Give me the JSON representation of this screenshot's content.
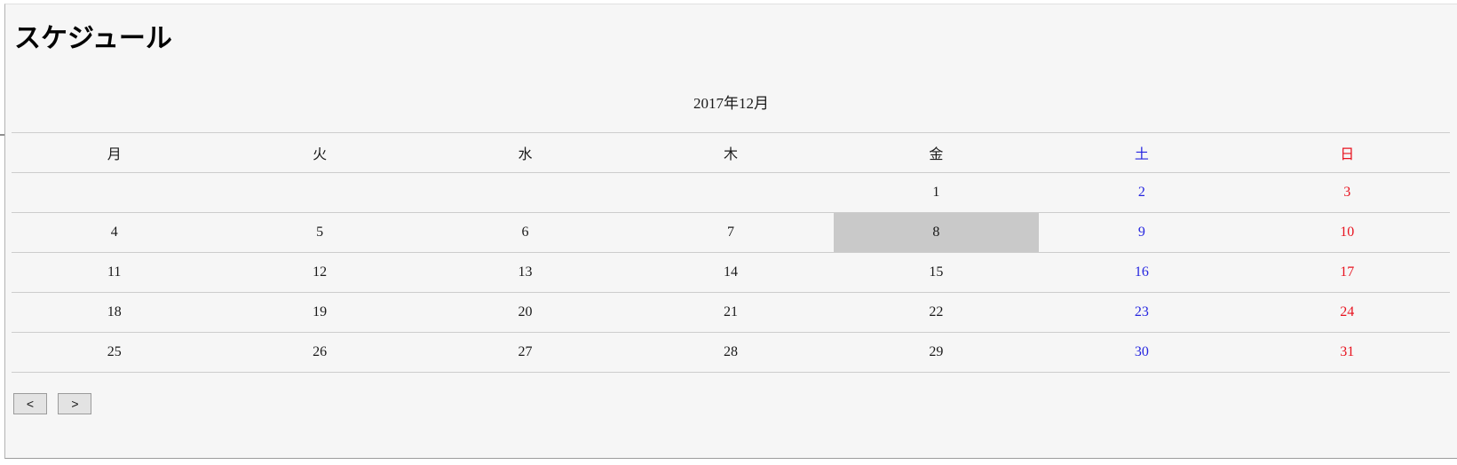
{
  "page": {
    "title": "スケジュール"
  },
  "calendar": {
    "caption": "2017年12月",
    "weekdays": [
      {
        "label": "月",
        "key": "mon"
      },
      {
        "label": "火",
        "key": "tue"
      },
      {
        "label": "水",
        "key": "wed"
      },
      {
        "label": "木",
        "key": "thu"
      },
      {
        "label": "金",
        "key": "fri"
      },
      {
        "label": "土",
        "key": "sat",
        "type": "sat"
      },
      {
        "label": "日",
        "key": "sun",
        "type": "sun"
      }
    ],
    "weeks": [
      [
        {
          "day": ""
        },
        {
          "day": ""
        },
        {
          "day": ""
        },
        {
          "day": ""
        },
        {
          "day": "1"
        },
        {
          "day": "2",
          "type": "sat"
        },
        {
          "day": "3",
          "type": "sun"
        }
      ],
      [
        {
          "day": "4"
        },
        {
          "day": "5"
        },
        {
          "day": "6"
        },
        {
          "day": "7"
        },
        {
          "day": "8",
          "selected": true
        },
        {
          "day": "9",
          "type": "sat"
        },
        {
          "day": "10",
          "type": "sun"
        }
      ],
      [
        {
          "day": "11"
        },
        {
          "day": "12"
        },
        {
          "day": "13"
        },
        {
          "day": "14"
        },
        {
          "day": "15"
        },
        {
          "day": "16",
          "type": "sat"
        },
        {
          "day": "17",
          "type": "sun"
        }
      ],
      [
        {
          "day": "18"
        },
        {
          "day": "19"
        },
        {
          "day": "20"
        },
        {
          "day": "21"
        },
        {
          "day": "22"
        },
        {
          "day": "23",
          "type": "sat"
        },
        {
          "day": "24",
          "type": "sun"
        }
      ],
      [
        {
          "day": "25"
        },
        {
          "day": "26"
        },
        {
          "day": "27"
        },
        {
          "day": "28"
        },
        {
          "day": "29"
        },
        {
          "day": "30",
          "type": "sat"
        },
        {
          "day": "31",
          "type": "sun"
        }
      ]
    ],
    "selected_day": "8"
  },
  "nav": {
    "prev_label": "<",
    "next_label": ">"
  },
  "colors": {
    "saturday": "#2626e0",
    "sunday": "#e8131f",
    "selected_bg": "#c9c9c9",
    "panel_bg": "#f6f6f6",
    "grid_line": "#cdcdcd"
  }
}
